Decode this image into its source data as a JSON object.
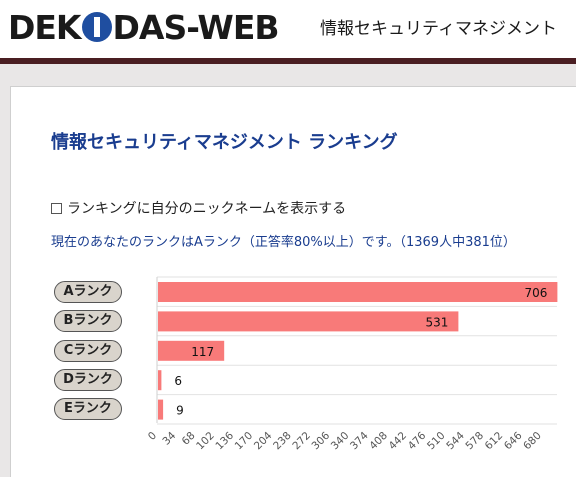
{
  "header": {
    "logo_part1": "DEK",
    "logo_part2": "DAS-WEB",
    "subtitle": "情報セキュリティマネジメント"
  },
  "page": {
    "title": "情報セキュリティマネジメント ランキング",
    "checkbox_label": "ランキングに自分のニックネームを表示する",
    "checkbox_checked": false,
    "rank_status": "現在のあなたのランクはAランク（正答率80%以上）です。（1369人中381位）"
  },
  "colors": {
    "bar": "#f87a79",
    "title": "#1a3d8f",
    "header_line": "#4a1e22",
    "button_bg": "#d9d4cc"
  },
  "chart_data": {
    "type": "bar",
    "orientation": "horizontal",
    "categories": [
      "Aランク",
      "Bランク",
      "Cランク",
      "Dランク",
      "Eランク"
    ],
    "values": [
      706,
      531,
      117,
      6,
      9
    ],
    "xlim": [
      0,
      700
    ],
    "x_ticks": [
      0,
      34,
      68,
      102,
      136,
      170,
      204,
      238,
      272,
      306,
      340,
      374,
      408,
      442,
      476,
      510,
      544,
      578,
      612,
      646,
      680
    ],
    "grid": true,
    "data_labels": true
  }
}
